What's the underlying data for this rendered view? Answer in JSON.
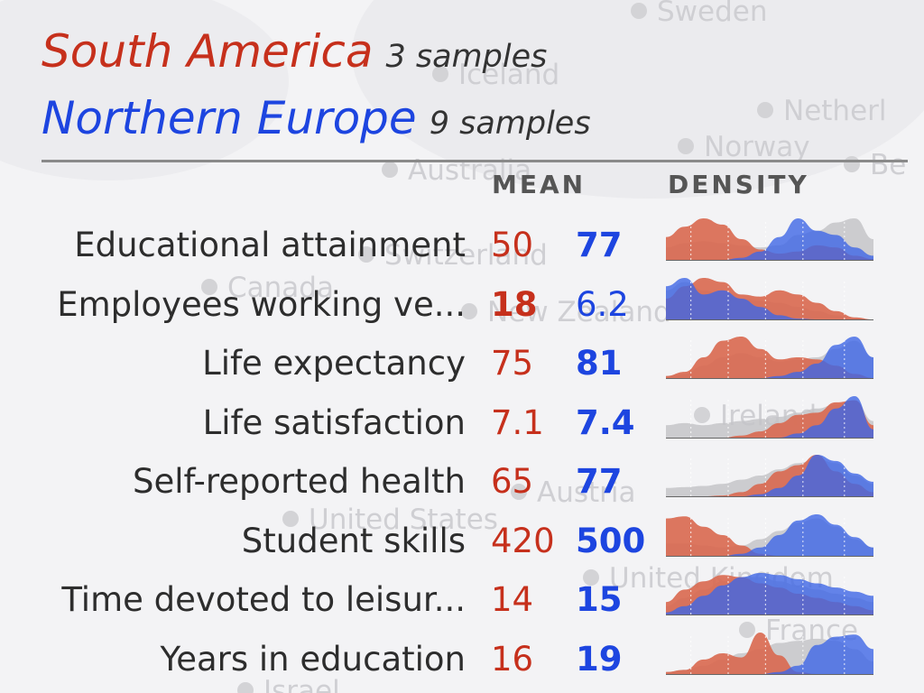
{
  "legend": {
    "group_a": {
      "name": "South America",
      "count_label": "3 samples",
      "color": "#c6301c"
    },
    "group_b": {
      "name": "Northern Europe",
      "count_label": "9 samples",
      "color": "#1d45e0"
    }
  },
  "columns": {
    "mean": "MEAN",
    "density": "DENSITY"
  },
  "background_labels": [
    "Sweden",
    "Iceland",
    "Netherl",
    "Norway",
    "Australia",
    "Be",
    "Switzerland",
    "Canada",
    "New Zealand",
    "Ireland",
    "Austria",
    "United States",
    "United Kingdom",
    "France",
    "Israel"
  ],
  "chart_data": {
    "type": "table",
    "title": "",
    "series": [
      {
        "name": "South America",
        "color": "#d9684f"
      },
      {
        "name": "Northern Europe",
        "color": "#3e66e6"
      }
    ],
    "rows": [
      {
        "label": "Educational attainment",
        "mean_a": "50",
        "mean_b": "77",
        "bold_a": false,
        "bold_b": true,
        "density_a": [
          0.55,
          0.8,
          1.0,
          0.85,
          0.5,
          0.25,
          0.15,
          0.2,
          0.35,
          0.3,
          0.1,
          0.02
        ],
        "density_b": [
          0.0,
          0.0,
          0.0,
          0.0,
          0.05,
          0.2,
          0.55,
          1.0,
          0.7,
          0.6,
          0.3,
          0.1
        ],
        "density_all": [
          0.3,
          0.4,
          0.45,
          0.4,
          0.35,
          0.3,
          0.35,
          0.6,
          0.7,
          0.9,
          1.0,
          0.5
        ]
      },
      {
        "label": "Employees working ve...",
        "mean_a": "18",
        "mean_b": "6.2",
        "bold_a": true,
        "bold_b": false,
        "density_a": [
          0.5,
          0.8,
          1.0,
          0.9,
          0.6,
          0.55,
          0.7,
          0.6,
          0.4,
          0.2,
          0.05,
          0.0
        ],
        "density_b": [
          0.8,
          1.0,
          0.6,
          0.7,
          0.5,
          0.3,
          0.1,
          0.02,
          0.0,
          0.0,
          0.0,
          0.0
        ],
        "density_all": [
          0.7,
          0.9,
          0.7,
          0.6,
          0.5,
          0.45,
          0.4,
          0.3,
          0.2,
          0.1,
          0.03,
          0.0
        ]
      },
      {
        "label": "Life expectancy",
        "mean_a": "75",
        "mean_b": "81",
        "bold_a": false,
        "bold_b": true,
        "density_a": [
          0.05,
          0.15,
          0.5,
          0.9,
          1.0,
          0.7,
          0.45,
          0.5,
          0.45,
          0.3,
          0.1,
          0.0
        ],
        "density_b": [
          0.0,
          0.0,
          0.0,
          0.0,
          0.0,
          0.0,
          0.05,
          0.15,
          0.35,
          0.8,
          1.0,
          0.5
        ],
        "density_all": [
          0.05,
          0.1,
          0.3,
          0.5,
          0.6,
          0.5,
          0.4,
          0.45,
          0.5,
          0.7,
          0.9,
          0.5
        ]
      },
      {
        "label": "Life satisfaction",
        "mean_a": "7.1",
        "mean_b": "7.4",
        "bold_a": false,
        "bold_b": true,
        "density_a": [
          0.0,
          0.0,
          0.0,
          0.0,
          0.05,
          0.15,
          0.35,
          0.55,
          0.6,
          0.85,
          0.9,
          0.3
        ],
        "density_b": [
          0.0,
          0.0,
          0.0,
          0.0,
          0.0,
          0.0,
          0.0,
          0.1,
          0.3,
          0.7,
          1.0,
          0.2
        ],
        "density_all": [
          0.3,
          0.35,
          0.3,
          0.35,
          0.4,
          0.45,
          0.5,
          0.6,
          0.7,
          0.8,
          0.9,
          0.4
        ]
      },
      {
        "label": "Self-reported health",
        "mean_a": "65",
        "mean_b": "77",
        "bold_a": false,
        "bold_b": true,
        "density_a": [
          0.0,
          0.0,
          0.0,
          0.02,
          0.1,
          0.3,
          0.6,
          0.75,
          1.0,
          0.6,
          0.3,
          0.1
        ],
        "density_b": [
          0.0,
          0.0,
          0.0,
          0.0,
          0.0,
          0.05,
          0.2,
          0.5,
          1.0,
          0.85,
          0.55,
          0.35
        ],
        "density_all": [
          0.2,
          0.22,
          0.25,
          0.3,
          0.4,
          0.5,
          0.65,
          0.8,
          0.9,
          0.8,
          0.5,
          0.3
        ]
      },
      {
        "label": "Student skills",
        "mean_a": "420",
        "mean_b": "500",
        "bold_a": false,
        "bold_b": true,
        "density_a": [
          0.9,
          0.95,
          0.7,
          0.5,
          0.25,
          0.05,
          0.0,
          0.0,
          0.0,
          0.0,
          0.0,
          0.0
        ],
        "density_b": [
          0.0,
          0.0,
          0.0,
          0.0,
          0.05,
          0.2,
          0.5,
          0.85,
          1.0,
          0.75,
          0.45,
          0.2
        ],
        "density_all": [
          0.3,
          0.3,
          0.25,
          0.2,
          0.25,
          0.4,
          0.6,
          0.8,
          0.9,
          0.7,
          0.4,
          0.2
        ]
      },
      {
        "label": "Time devoted to leisur...",
        "mean_a": "14",
        "mean_b": "15",
        "bold_a": false,
        "bold_b": true,
        "density_a": [
          0.3,
          0.6,
          0.8,
          0.95,
          0.9,
          0.75,
          0.65,
          0.5,
          0.4,
          0.3,
          0.2,
          0.1
        ],
        "density_b": [
          0.05,
          0.2,
          0.45,
          0.7,
          0.9,
          1.0,
          0.95,
          0.85,
          0.75,
          0.65,
          0.55,
          0.45
        ],
        "density_all": [
          0.2,
          0.4,
          0.6,
          0.8,
          0.9,
          0.9,
          0.8,
          0.7,
          0.6,
          0.5,
          0.4,
          0.3
        ]
      },
      {
        "label": "Years in education",
        "mean_a": "16",
        "mean_b": "19",
        "bold_a": false,
        "bold_b": true,
        "density_a": [
          0.05,
          0.1,
          0.35,
          0.5,
          0.4,
          1.0,
          0.45,
          0.05,
          0.0,
          0.0,
          0.0,
          0.0
        ],
        "density_b": [
          0.0,
          0.0,
          0.0,
          0.0,
          0.0,
          0.0,
          0.05,
          0.2,
          0.7,
          0.9,
          0.95,
          0.6
        ],
        "density_all": [
          0.05,
          0.1,
          0.2,
          0.35,
          0.5,
          0.6,
          0.75,
          0.8,
          0.85,
          0.8,
          0.6,
          0.3
        ]
      }
    ]
  }
}
